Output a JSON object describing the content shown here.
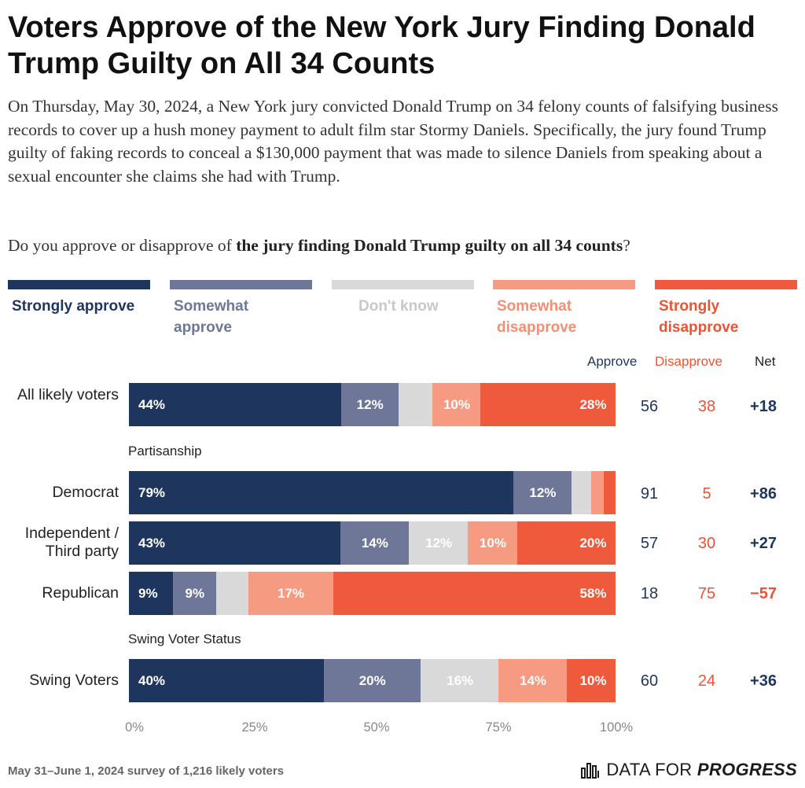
{
  "header": {
    "title": "Voters Approve of the New York Jury Finding Donald Trump Guilty on All 34 Counts",
    "description": "On Thursday, May 30, 2024, a New York jury convicted Donald Trump on 34 felony counts of falsifying business records to cover up a hush money payment to adult film star Stormy Daniels. Specifically, the jury found Trump guilty of faking records to conceal a $130,000 payment that was made to silence Daniels from speaking about a sexual encounter she claims she had with Trump.",
    "question_prefix": "Do you approve or disapprove of ",
    "question_bold": "the jury finding Donald Trump guilty on all 34 counts",
    "question_suffix": "?"
  },
  "legend": [
    {
      "label": "Strongly approve",
      "color": "#1e355e",
      "text_color": "#1e355e"
    },
    {
      "label": "Somewhat approve",
      "color": "#6f7798",
      "text_color": "#6f7798"
    },
    {
      "label": "Don't know",
      "color": "#d9d9d9",
      "text_color": "#c8c8c8"
    },
    {
      "label": "Somewhat disapprove",
      "color": "#f79a82",
      "text_color": "#f48f73"
    },
    {
      "label": "Strongly disapprove",
      "color": "#ef5a3d",
      "text_color": "#ea5435"
    }
  ],
  "columns": {
    "approve": "Approve",
    "disapprove": "Disapprove",
    "net": "Net"
  },
  "colors": {
    "approve": "#1e355e",
    "disapprove": "#ea5435",
    "net_negative": "#ea5435"
  },
  "groups": {
    "partisanship": "Partisanship",
    "swing": "Swing Voter Status"
  },
  "chart_data": {
    "type": "bar",
    "orientation": "horizontal-stacked",
    "title": "Voters Approve of the New York Jury Finding Donald Trump Guilty on All 34 Counts",
    "series_names": [
      "Strongly approve",
      "Somewhat approve",
      "Don't know",
      "Somewhat disapprove",
      "Strongly disapprove"
    ],
    "categories": [
      "All likely voters",
      "Democrat",
      "Independent / Third party",
      "Republican",
      "Swing Voters"
    ],
    "rows": [
      {
        "label": "All likely voters",
        "values": [
          44,
          12,
          7,
          10,
          28
        ],
        "labels": [
          "44%",
          "12%",
          "",
          "10%",
          "28%"
        ],
        "approve": "56",
        "disapprove": "38",
        "net": "+18"
      },
      {
        "label": "Democrat",
        "values": [
          79,
          12,
          4,
          2.5,
          2.5
        ],
        "labels": [
          "79%",
          "12%",
          "",
          "",
          ""
        ],
        "approve": "91",
        "disapprove": "5",
        "net": "+86"
      },
      {
        "label": "Independent / Third party",
        "values": [
          43,
          14,
          12,
          10,
          20
        ],
        "labels": [
          "43%",
          "14%",
          "12%",
          "10%",
          "20%"
        ],
        "approve": "57",
        "disapprove": "30",
        "net": "+27"
      },
      {
        "label": "Republican",
        "values": [
          9,
          9,
          6.5,
          17.5,
          58
        ],
        "labels": [
          "9%",
          "9%",
          "",
          "17%",
          "58%"
        ],
        "approve": "18",
        "disapprove": "75",
        "net": "−57"
      },
      {
        "label": "Swing Voters",
        "values": [
          40,
          20,
          16,
          14,
          10
        ],
        "labels": [
          "40%",
          "20%",
          "16%",
          "14%",
          "10%"
        ],
        "approve": "60",
        "disapprove": "24",
        "net": "+36"
      }
    ],
    "xlim": [
      0,
      100
    ],
    "xticks": [
      "0%",
      "25%",
      "50%",
      "75%",
      "100%"
    ]
  },
  "footer": {
    "note": "May 31–June 1, 2024 survey of 1,216 likely voters",
    "brand_prefix": "DATA FOR ",
    "brand_strong": "PROGRESS",
    "brand_icon": "bar-chart-icon"
  }
}
